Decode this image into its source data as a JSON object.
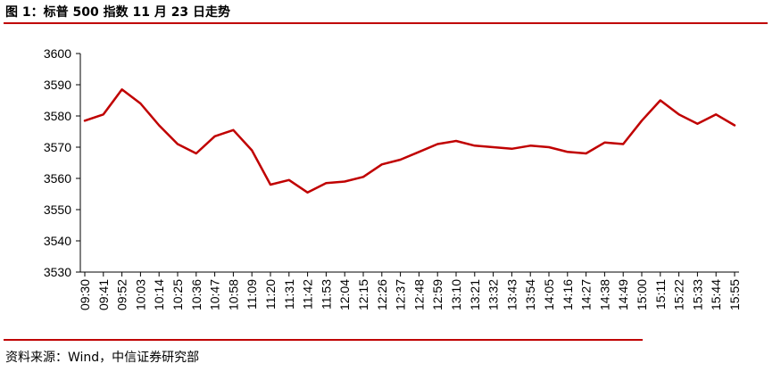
{
  "title": "图 1：标普 500 指数 11 月 23 日走势",
  "source": "资料来源：Wind，中信证券研究部",
  "colors": {
    "line": "#c00000",
    "axis": "#000000",
    "rule": "#c00000"
  },
  "chart_data": {
    "type": "line",
    "title": "图 1：标普 500 指数 11 月 23 日走势",
    "xlabel": "",
    "ylabel": "",
    "ylim": [
      3530,
      3600
    ],
    "yticks": [
      3530,
      3540,
      3550,
      3560,
      3570,
      3580,
      3590,
      3600
    ],
    "categories": [
      "09:30",
      "09:41",
      "09:52",
      "10:03",
      "10:14",
      "10:25",
      "10:36",
      "10:47",
      "10:58",
      "11:09",
      "11:20",
      "11:31",
      "11:42",
      "11:53",
      "12:04",
      "12:15",
      "12:26",
      "12:37",
      "12:48",
      "12:59",
      "13:10",
      "13:21",
      "13:32",
      "13:43",
      "13:54",
      "14:05",
      "14:16",
      "14:27",
      "14:38",
      "14:49",
      "15:00",
      "15:11",
      "15:22",
      "15:33",
      "15:44",
      "15:55"
    ],
    "grid": false,
    "legend": "none",
    "series": [
      {
        "values": [
          3578.5,
          3580.5,
          3588.5,
          3584.0,
          3577.0,
          3571.0,
          3568.0,
          3573.5,
          3575.5,
          3569.0,
          3558.0,
          3559.5,
          3555.5,
          3558.5,
          3559.0,
          3560.5,
          3564.5,
          3566.0,
          3568.5,
          3571.0,
          3572.0,
          3570.5,
          3570.0,
          3569.5,
          3570.5,
          3570.0,
          3568.5,
          3568.0,
          3571.5,
          3571.0,
          3578.5,
          3585.0,
          3580.5,
          3577.5,
          3580.5,
          3577.0
        ]
      }
    ]
  }
}
